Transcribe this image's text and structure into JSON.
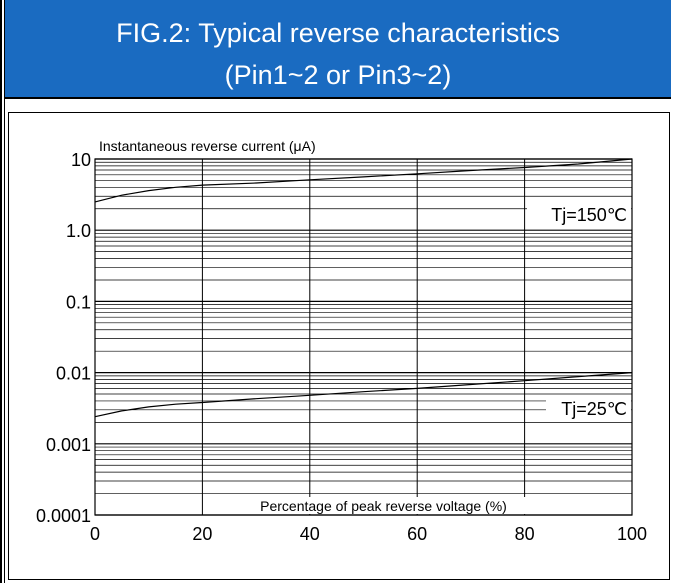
{
  "figure": {
    "title_line1": "FIG.2: Typical reverse characteristics",
    "title_line2": "(Pin1~2 or Pin3~2)"
  },
  "colors": {
    "header_bg": "#1a6bc1",
    "header_text": "#ffffff",
    "line": "#000000"
  },
  "chart_data": {
    "type": "line",
    "title": "",
    "xlabel": "Percentage of peak reverse voltage (%)",
    "ylabel": "Instantaneous reverse current (μA)",
    "xlim": [
      0,
      100
    ],
    "ylim": [
      0.0001,
      10
    ],
    "yscale": "log",
    "grid": true,
    "x_ticks": [
      0,
      20,
      40,
      60,
      80,
      100
    ],
    "x_tick_labels": [
      "0",
      "20",
      "40",
      "60",
      "80",
      "100"
    ],
    "y_ticks": [
      10,
      1,
      0.1,
      0.01,
      0.001,
      0.0001
    ],
    "y_tick_labels": [
      "10",
      "1.0",
      "0.1",
      "0.01",
      "0.001",
      "0.0001"
    ],
    "series": [
      {
        "name": "Tj=150℃",
        "x": [
          0,
          5,
          10,
          15,
          20,
          30,
          40,
          50,
          60,
          70,
          80,
          90,
          100
        ],
        "y": [
          2.5,
          3.1,
          3.6,
          4.0,
          4.3,
          4.6,
          5.1,
          5.6,
          6.2,
          6.9,
          7.6,
          8.5,
          10
        ]
      },
      {
        "name": "Tj=25℃",
        "x": [
          0,
          5,
          10,
          15,
          20,
          30,
          40,
          50,
          60,
          70,
          80,
          90,
          100
        ],
        "y": [
          0.0024,
          0.0029,
          0.0033,
          0.0036,
          0.0038,
          0.0043,
          0.0048,
          0.0054,
          0.006,
          0.0068,
          0.0077,
          0.0088,
          0.01
        ]
      }
    ]
  }
}
